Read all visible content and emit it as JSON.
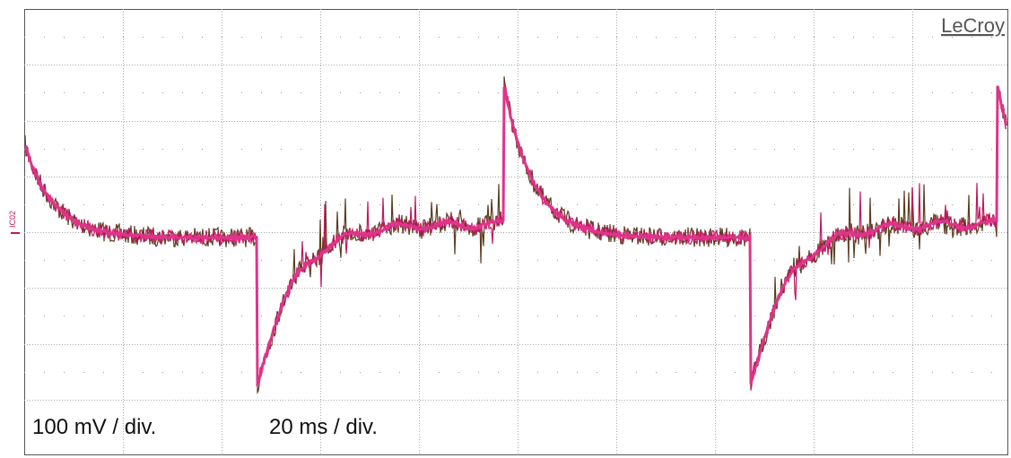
{
  "brand": "LeCroy",
  "channel_marker": "IC02",
  "labels": {
    "vertical_scale": "100 mV / div.",
    "time_scale": "20 ms / div."
  }
}
